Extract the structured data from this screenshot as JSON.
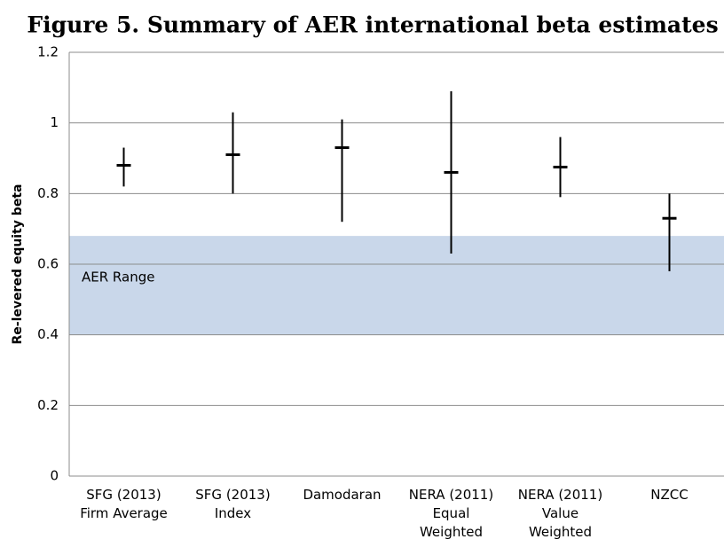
{
  "chart_data": {
    "type": "range",
    "title": "Figure 5. Summary of AER international beta estimates",
    "ylabel": "Re-levered equity beta",
    "categories": [
      "SFG (2013)\nFirm Average",
      "SFG (2013)\nIndex",
      "Damodaran",
      "NERA (2011)\nEqual\nWeighted",
      "NERA (2011)\nValue\nWeighted",
      "NZCC"
    ],
    "values": [
      0.88,
      0.91,
      0.93,
      0.86,
      0.875,
      0.73
    ],
    "low": [
      0.82,
      0.8,
      0.72,
      0.63,
      0.79,
      0.58
    ],
    "high": [
      0.93,
      1.03,
      1.01,
      1.09,
      0.96,
      0.8
    ],
    "color": "#000000",
    "band": {
      "label": "AER Range",
      "low": 0.4,
      "high": 0.68,
      "color": "#c9d7ea"
    },
    "ylim": [
      0,
      1.2
    ],
    "yticks": [
      0,
      0.2,
      0.4,
      0.6,
      0.8,
      1,
      1.2
    ],
    "grid": true
  }
}
